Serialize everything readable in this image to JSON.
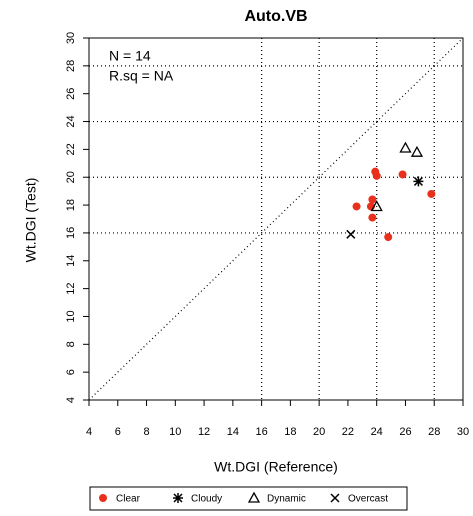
{
  "chart_data": {
    "type": "scatter",
    "title": "Auto.VB",
    "x_label": "Wt.DGI (Reference)",
    "y_label": "Wt.DGI (Test)",
    "annotations": [
      "N = 14",
      "R.sq = NA"
    ],
    "xlim": [
      4,
      30
    ],
    "ylim": [
      4,
      30
    ],
    "xticks": [
      4,
      6,
      8,
      10,
      12,
      14,
      16,
      18,
      20,
      22,
      24,
      26,
      28,
      30
    ],
    "yticks": [
      4,
      6,
      8,
      10,
      12,
      14,
      16,
      18,
      20,
      22,
      24,
      26,
      28,
      30
    ],
    "grid_x": [
      16,
      20,
      24,
      28
    ],
    "grid_y": [
      16,
      20,
      24,
      28
    ],
    "identity_line": true,
    "series": [
      {
        "name": "Clear",
        "color": "#e8301c",
        "marker": "circle",
        "x": [
          23.9,
          24.0,
          25.8,
          23.7,
          23.6,
          22.6,
          23.7,
          24.8,
          27.8
        ],
        "values": [
          20.4,
          20.1,
          20.2,
          18.4,
          17.9,
          17.9,
          17.1,
          15.7,
          18.8
        ]
      },
      {
        "name": "Cloudy",
        "color": "#000000",
        "marker": "asterisk",
        "x": [
          26.9
        ],
        "values": [
          19.7
        ]
      },
      {
        "name": "Dynamic",
        "color": "#000000",
        "marker": "triangle",
        "x": [
          26.0,
          26.8,
          24.0
        ],
        "values": [
          22.1,
          21.8,
          17.9
        ]
      },
      {
        "name": "Overcast",
        "color": "#000000",
        "marker": "x",
        "x": [
          22.2
        ],
        "values": [
          15.9
        ]
      }
    ]
  }
}
